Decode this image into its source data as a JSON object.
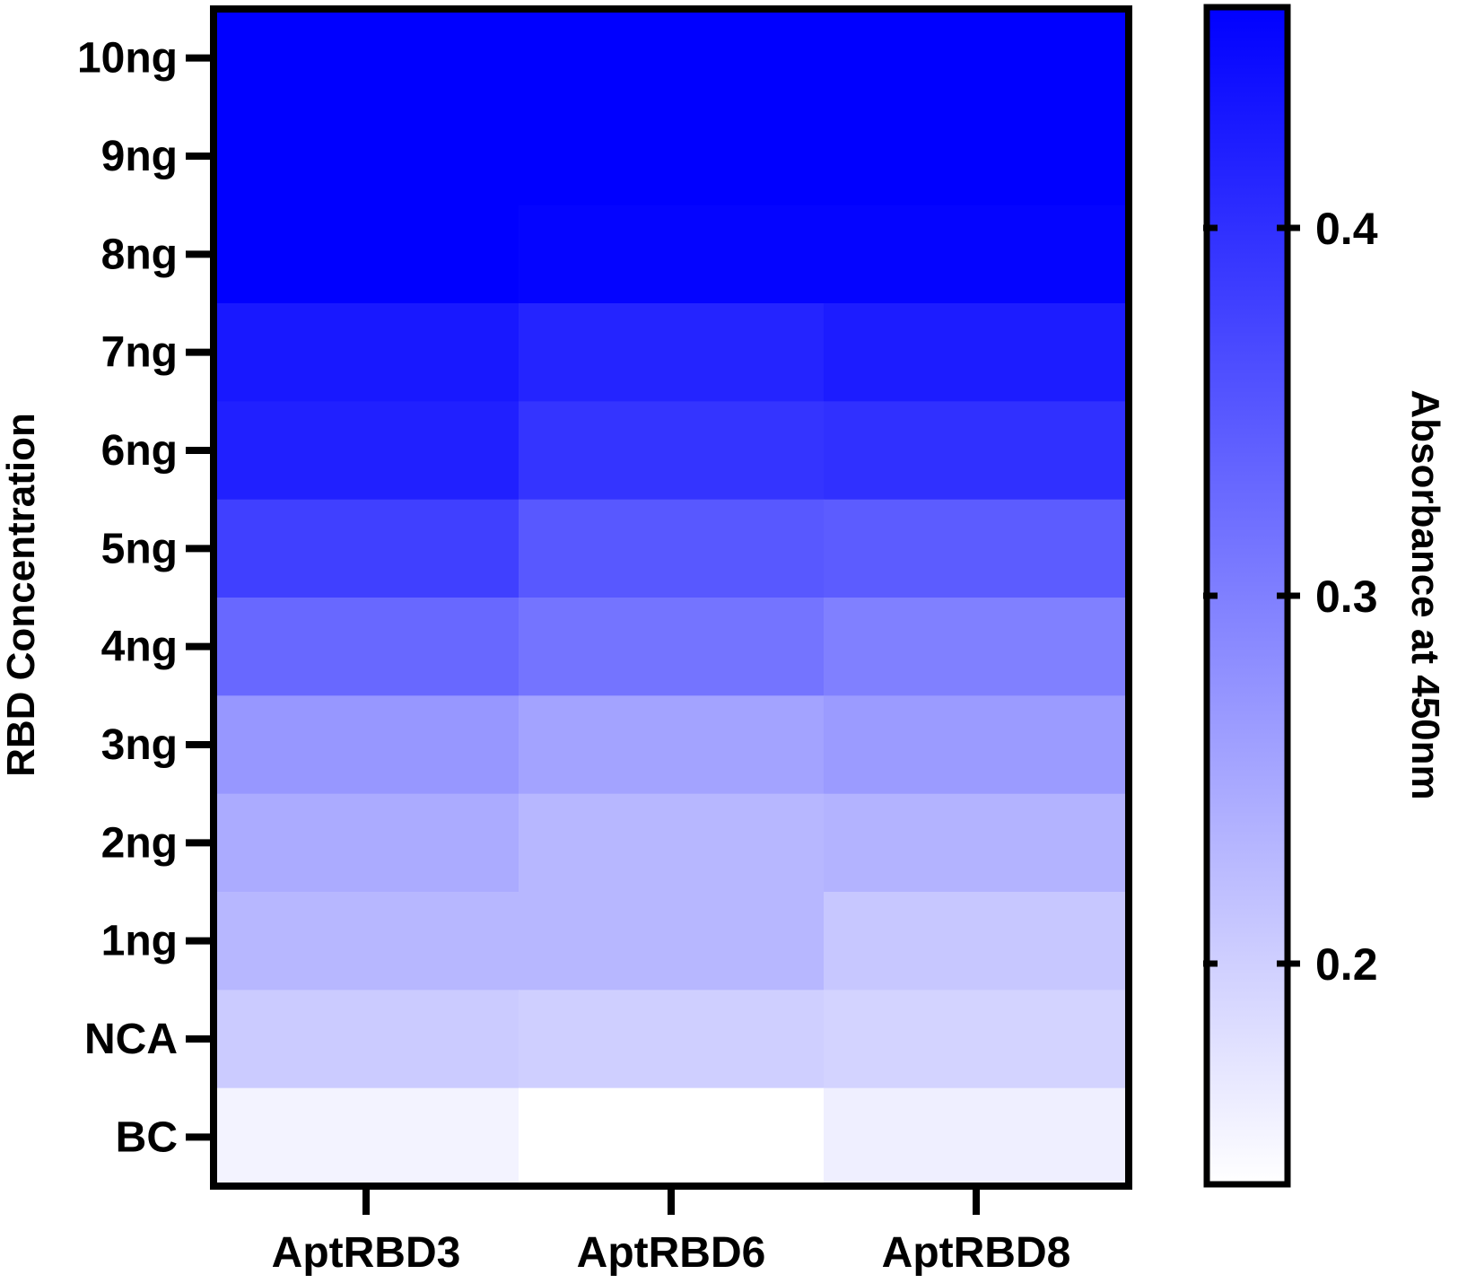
{
  "chart_data": {
    "type": "heatmap",
    "title": "",
    "ylabel": "RBD Concentration",
    "xlabel": "",
    "x_categories": [
      "AptRBD3",
      "AptRBD6",
      "AptRBD8"
    ],
    "y_categories": [
      "10ng",
      "9ng",
      "8ng",
      "7ng",
      "6ng",
      "5ng",
      "4ng",
      "3ng",
      "2ng",
      "1ng",
      "NCA",
      "BC"
    ],
    "values": [
      [
        0.46,
        0.46,
        0.46
      ],
      [
        0.46,
        0.46,
        0.46
      ],
      [
        0.46,
        0.455,
        0.455
      ],
      [
        0.43,
        0.415,
        0.425
      ],
      [
        0.42,
        0.395,
        0.4
      ],
      [
        0.38,
        0.35,
        0.345
      ],
      [
        0.33,
        0.315,
        0.3
      ],
      [
        0.27,
        0.255,
        0.265
      ],
      [
        0.245,
        0.23,
        0.235
      ],
      [
        0.23,
        0.23,
        0.21
      ],
      [
        0.205,
        0.2,
        0.195
      ],
      [
        0.155,
        0.14,
        0.16
      ]
    ],
    "colorbar": {
      "label": "Absorbance at 450nm",
      "range": [
        0.14,
        0.46
      ],
      "ticks": [
        0.2,
        0.3,
        0.4
      ],
      "tick_labels": [
        "0.2",
        "0.3",
        "0.4"
      ],
      "colors": {
        "low": "#ffffff",
        "high": "#0000ff"
      }
    },
    "grid": false,
    "legend": "right colorbar"
  }
}
